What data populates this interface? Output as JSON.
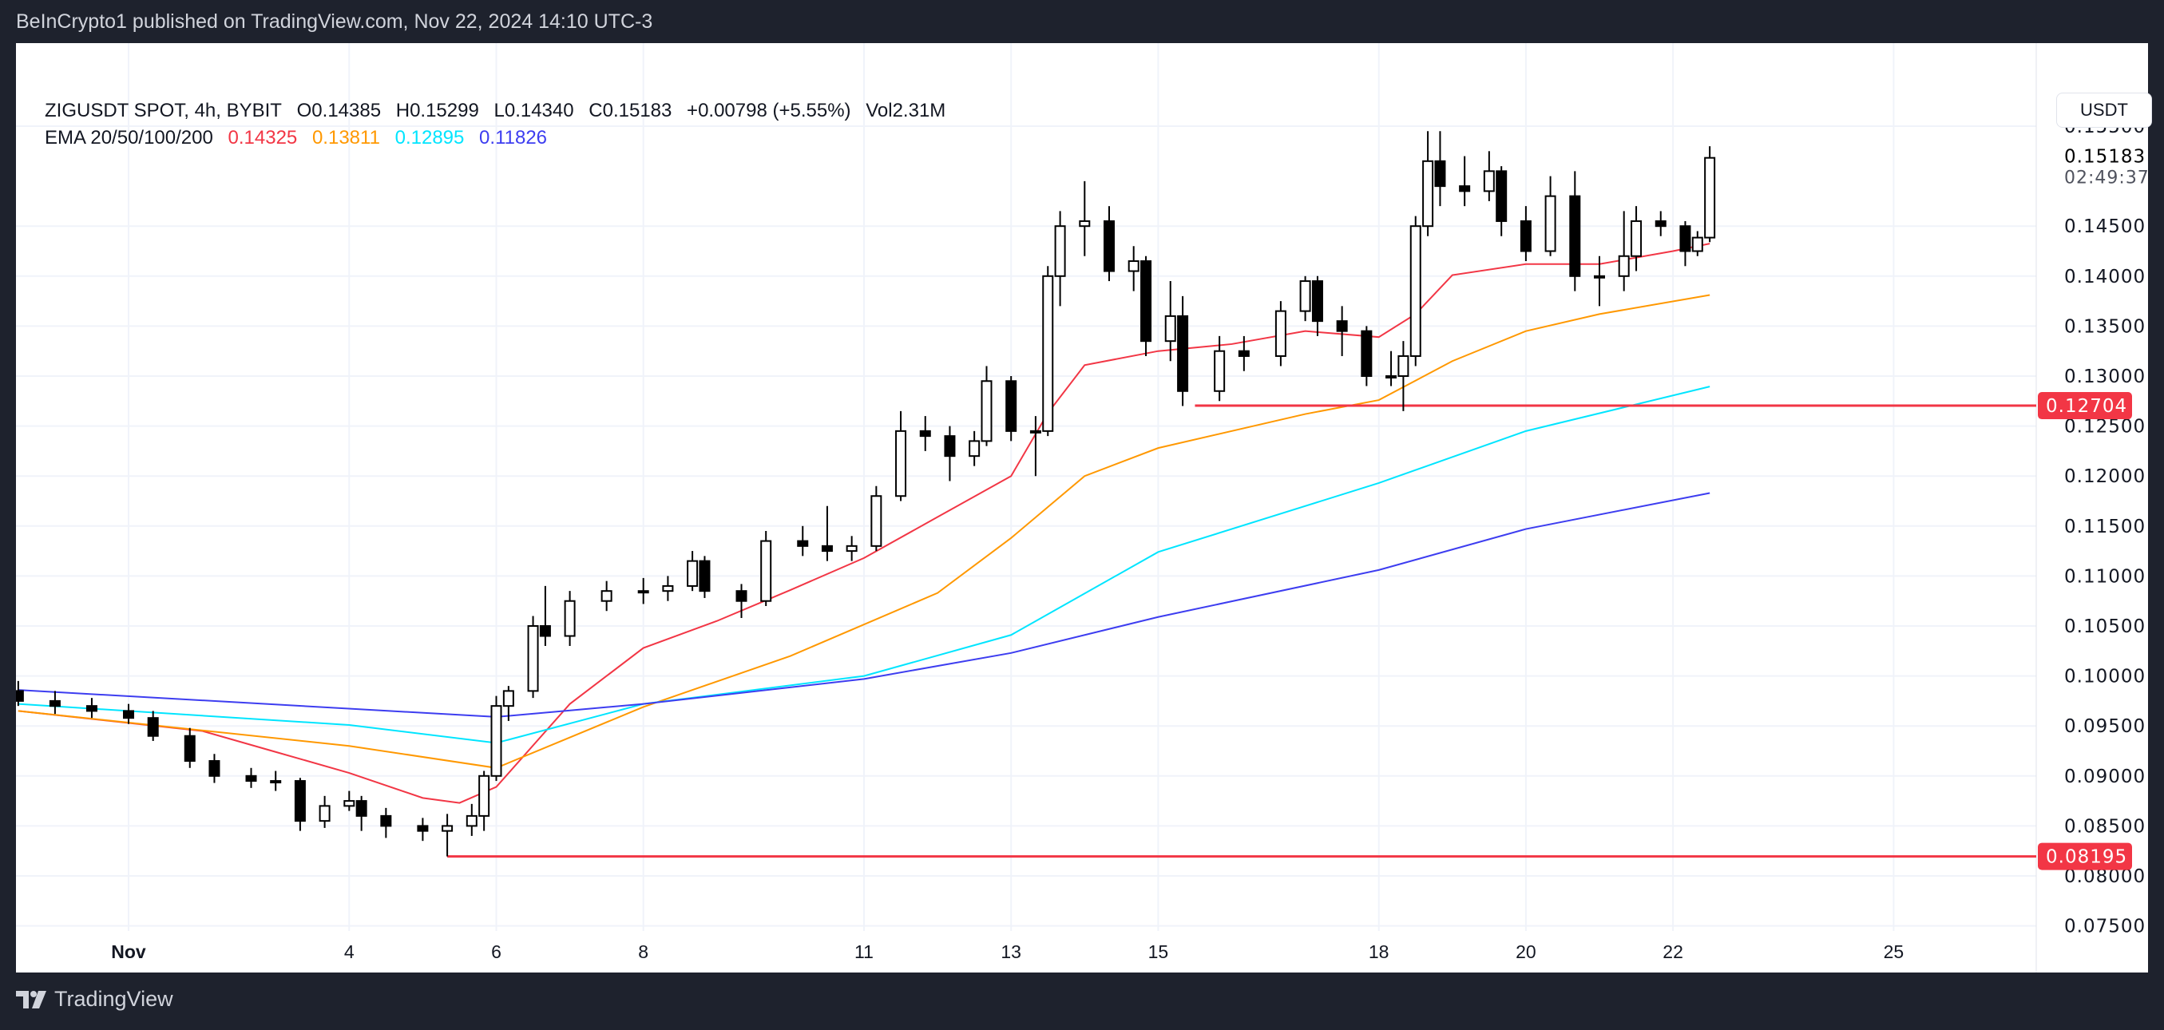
{
  "header": {
    "publisher": "BeInCrypto1 published on TradingView.com, Nov 22, 2024 14:10 UTC-3"
  },
  "legend": {
    "symbol": "ZIGUSDT SPOT, 4h, BYBIT",
    "open": "O0.14385",
    "high": "H0.15299",
    "low": "L0.14340",
    "close": "C0.15183",
    "change": "+0.00798 (+5.55%)",
    "volume": "Vol2.31M",
    "ema_label": "EMA 20/50/100/200",
    "ema_values": [
      "0.14325",
      "0.13811",
      "0.12895",
      "0.11826"
    ]
  },
  "axis": {
    "currency_button": "USDT",
    "current_price": "0.15183",
    "countdown": "02:49:37"
  },
  "footer": {
    "brand": "TradingView"
  },
  "colors": {
    "up": "#ffffff",
    "down": "#000000",
    "ema20": "#f23645",
    "ema50": "#ff9800",
    "ema100": "#00e5ff",
    "ema200": "#3d3df0",
    "level": "#f23645",
    "background": "#ffffff",
    "frame": "#1e222d"
  },
  "chart_data": {
    "type": "candlestick",
    "ylim": [
      0.075,
      0.1575
    ],
    "y_ticks": [
      "0.15500",
      "0.14500",
      "0.14000",
      "0.13500",
      "0.13000",
      "0.12500",
      "0.12000",
      "0.11500",
      "0.11000",
      "0.10500",
      "0.10000",
      "0.09500",
      "0.09000",
      "0.08500",
      "0.08000",
      "0.07500"
    ],
    "x_ticks": [
      {
        "label": "Nov",
        "date": "2024-11-01",
        "bold": true
      },
      {
        "label": "4",
        "date": "2024-11-04"
      },
      {
        "label": "6",
        "date": "2024-11-06"
      },
      {
        "label": "8",
        "date": "2024-11-08"
      },
      {
        "label": "11",
        "date": "2024-11-11"
      },
      {
        "label": "13",
        "date": "2024-11-13"
      },
      {
        "label": "15",
        "date": "2024-11-15"
      },
      {
        "label": "18",
        "date": "2024-11-18"
      },
      {
        "label": "20",
        "date": "2024-11-20"
      },
      {
        "label": "22",
        "date": "2024-11-22"
      },
      {
        "label": "25",
        "date": "2024-11-25"
      }
    ],
    "grid": true,
    "candles": [
      [
        "2024-10-30T12",
        0.0985,
        0.0995,
        0.097,
        0.0975
      ],
      [
        "2024-10-31T00",
        0.0975,
        0.0985,
        0.0962,
        0.097
      ],
      [
        "2024-10-31T12",
        0.097,
        0.0978,
        0.0958,
        0.0965
      ],
      [
        "2024-11-01T00",
        0.0965,
        0.0972,
        0.0952,
        0.0958
      ],
      [
        "2024-11-01T08",
        0.0958,
        0.0965,
        0.0935,
        0.094
      ],
      [
        "2024-11-01T20",
        0.094,
        0.0948,
        0.0908,
        0.0915
      ],
      [
        "2024-11-02T04",
        0.0915,
        0.0922,
        0.0893,
        0.09
      ],
      [
        "2024-11-02T16",
        0.09,
        0.0908,
        0.0888,
        0.0895
      ],
      [
        "2024-11-03T00",
        0.0895,
        0.0905,
        0.0885,
        0.0895
      ],
      [
        "2024-11-03T08",
        0.0895,
        0.0898,
        0.0845,
        0.0855
      ],
      [
        "2024-11-03T16",
        0.0855,
        0.088,
        0.0848,
        0.087
      ],
      [
        "2024-11-04T00",
        0.087,
        0.0885,
        0.0865,
        0.0875
      ],
      [
        "2024-11-04T04",
        0.0875,
        0.088,
        0.0845,
        0.086
      ],
      [
        "2024-11-04T12",
        0.086,
        0.0868,
        0.0838,
        0.085
      ],
      [
        "2024-11-05T00",
        0.085,
        0.0858,
        0.0835,
        0.0845
      ],
      [
        "2024-11-05T08",
        0.0845,
        0.0862,
        0.08195,
        0.085
      ],
      [
        "2024-11-05T16",
        0.085,
        0.0872,
        0.084,
        0.086
      ],
      [
        "2024-11-05T20",
        0.086,
        0.0905,
        0.0845,
        0.09
      ],
      [
        "2024-11-06T00",
        0.09,
        0.098,
        0.0895,
        0.097
      ],
      [
        "2024-11-06T04",
        0.097,
        0.099,
        0.0955,
        0.0985
      ],
      [
        "2024-11-06T12",
        0.0985,
        0.106,
        0.0978,
        0.105
      ],
      [
        "2024-11-06T16",
        0.105,
        0.109,
        0.103,
        0.104
      ],
      [
        "2024-11-07T00",
        0.104,
        0.1085,
        0.103,
        0.1075
      ],
      [
        "2024-11-07T12",
        0.1075,
        0.1095,
        0.1065,
        0.1085
      ],
      [
        "2024-11-08T00",
        0.1085,
        0.1098,
        0.1072,
        0.1085
      ],
      [
        "2024-11-08T08",
        0.1085,
        0.11,
        0.1075,
        0.109
      ],
      [
        "2024-11-08T16",
        0.109,
        0.1125,
        0.1085,
        0.1115
      ],
      [
        "2024-11-08T20",
        0.1115,
        0.112,
        0.1078,
        0.1085
      ],
      [
        "2024-11-09T08",
        0.1085,
        0.1092,
        0.1058,
        0.1075
      ],
      [
        "2024-11-09T16",
        0.1075,
        0.1145,
        0.107,
        0.1135
      ],
      [
        "2024-11-10T04",
        0.1135,
        0.115,
        0.112,
        0.113
      ],
      [
        "2024-11-10T12",
        0.113,
        0.117,
        0.1115,
        0.1125
      ],
      [
        "2024-11-10T20",
        0.1125,
        0.114,
        0.1115,
        0.113
      ],
      [
        "2024-11-11T04",
        0.113,
        0.119,
        0.1125,
        0.118
      ],
      [
        "2024-11-11T12",
        0.118,
        0.1265,
        0.1175,
        0.1245
      ],
      [
        "2024-11-11T20",
        0.1245,
        0.126,
        0.1225,
        0.124
      ],
      [
        "2024-11-12T04",
        0.124,
        0.125,
        0.1195,
        0.122
      ],
      [
        "2024-11-12T12",
        0.122,
        0.1245,
        0.121,
        0.1235
      ],
      [
        "2024-11-12T16",
        0.1235,
        0.131,
        0.123,
        0.1295
      ],
      [
        "2024-11-13T00",
        0.1295,
        0.13,
        0.1235,
        0.1245
      ],
      [
        "2024-11-13T08",
        0.1245,
        0.126,
        0.12,
        0.1245
      ],
      [
        "2024-11-13T12",
        0.1245,
        0.141,
        0.124,
        0.14
      ],
      [
        "2024-11-13T16",
        0.14,
        0.1465,
        0.137,
        0.145
      ],
      [
        "2024-11-14T00",
        0.145,
        0.1495,
        0.142,
        0.1455
      ],
      [
        "2024-11-14T08",
        0.1455,
        0.147,
        0.1395,
        0.1405
      ],
      [
        "2024-11-14T16",
        0.1405,
        0.143,
        0.1385,
        0.1415
      ],
      [
        "2024-11-14T20",
        0.1415,
        0.142,
        0.132,
        0.1335
      ],
      [
        "2024-11-15T04",
        0.1335,
        0.1395,
        0.1315,
        0.136
      ],
      [
        "2024-11-15T08",
        0.136,
        0.138,
        0.127,
        0.1285
      ],
      [
        "2024-11-15T20",
        0.1285,
        0.134,
        0.1275,
        0.1325
      ],
      [
        "2024-11-16T04",
        0.1325,
        0.134,
        0.1305,
        0.132
      ],
      [
        "2024-11-16T16",
        0.132,
        0.1375,
        0.131,
        0.1365
      ],
      [
        "2024-11-17T00",
        0.1365,
        0.14,
        0.1355,
        0.1395
      ],
      [
        "2024-11-17T04",
        0.1395,
        0.14,
        0.134,
        0.1355
      ],
      [
        "2024-11-17T12",
        0.1355,
        0.137,
        0.132,
        0.1345
      ],
      [
        "2024-11-17T20",
        0.1345,
        0.135,
        0.129,
        0.13
      ],
      [
        "2024-11-18T04",
        0.13,
        0.1325,
        0.129,
        0.13
      ],
      [
        "2024-11-18T08",
        0.13,
        0.1335,
        0.1265,
        0.132
      ],
      [
        "2024-11-18T12",
        0.132,
        0.146,
        0.131,
        0.145
      ],
      [
        "2024-11-18T16",
        0.145,
        0.1545,
        0.144,
        0.1515
      ],
      [
        "2024-11-18T20",
        0.1515,
        0.1545,
        0.147,
        0.149
      ],
      [
        "2024-11-19T04",
        0.149,
        0.152,
        0.147,
        0.1485
      ],
      [
        "2024-11-19T12",
        0.1485,
        0.1525,
        0.1475,
        0.1505
      ],
      [
        "2024-11-19T16",
        0.1505,
        0.151,
        0.144,
        0.1455
      ],
      [
        "2024-11-20T00",
        0.1455,
        0.147,
        0.1415,
        0.1425
      ],
      [
        "2024-11-20T08",
        0.1425,
        0.15,
        0.142,
        0.148
      ],
      [
        "2024-11-20T16",
        0.148,
        0.1505,
        0.1385,
        0.14
      ],
      [
        "2024-11-21T00",
        0.14,
        0.142,
        0.137,
        0.14
      ],
      [
        "2024-11-21T08",
        0.14,
        0.1465,
        0.1385,
        0.142
      ],
      [
        "2024-11-21T12",
        0.142,
        0.147,
        0.1405,
        0.1455
      ],
      [
        "2024-11-21T20",
        0.1455,
        0.1465,
        0.144,
        0.145
      ],
      [
        "2024-11-22T04",
        0.145,
        0.1455,
        0.141,
        0.1425
      ],
      [
        "2024-11-22T08",
        0.1425,
        0.1445,
        0.142,
        0.14385
      ],
      [
        "2024-11-22T12",
        0.14385,
        0.15299,
        0.1434,
        0.15183
      ]
    ],
    "ema": [
      {
        "name": "EMA 20",
        "color": "#f23645",
        "points": [
          [
            "2024-10-30T12",
            0.0965
          ],
          [
            "2024-11-02T00",
            0.0945
          ],
          [
            "2024-11-03T00",
            0.0924
          ],
          [
            "2024-11-04T00",
            0.0903
          ],
          [
            "2024-11-05T00",
            0.0878
          ],
          [
            "2024-11-05T12",
            0.0873
          ],
          [
            "2024-11-06T00",
            0.0889
          ],
          [
            "2024-11-07T00",
            0.0972
          ],
          [
            "2024-11-08T00",
            0.1028
          ],
          [
            "2024-11-09T00",
            0.1055
          ],
          [
            "2024-11-10T00",
            0.1086
          ],
          [
            "2024-11-11T00",
            0.1118
          ],
          [
            "2024-11-12T00",
            0.1159
          ],
          [
            "2024-11-13T00",
            0.12
          ],
          [
            "2024-11-13T12",
            0.1263
          ],
          [
            "2024-11-14T00",
            0.1311
          ],
          [
            "2024-11-15T00",
            0.1325
          ],
          [
            "2024-11-16T00",
            0.1332
          ],
          [
            "2024-11-17T00",
            0.1345
          ],
          [
            "2024-11-18T00",
            0.1339
          ],
          [
            "2024-11-18T12",
            0.1362
          ],
          [
            "2024-11-19T00",
            0.1401
          ],
          [
            "2024-11-20T00",
            0.1412
          ],
          [
            "2024-11-21T00",
            0.1412
          ],
          [
            "2024-11-22T00",
            0.1425
          ],
          [
            "2024-11-22T12",
            0.14325
          ]
        ]
      },
      {
        "name": "EMA 50",
        "color": "#ff9800",
        "points": [
          [
            "2024-10-30T12",
            0.0965
          ],
          [
            "2024-11-04T00",
            0.093
          ],
          [
            "2024-11-06T00",
            0.0908
          ],
          [
            "2024-11-08T00",
            0.0969
          ],
          [
            "2024-11-10T00",
            0.102
          ],
          [
            "2024-11-12T00",
            0.1083
          ],
          [
            "2024-11-13T00",
            0.1138
          ],
          [
            "2024-11-14T00",
            0.12
          ],
          [
            "2024-11-15T00",
            0.1228
          ],
          [
            "2024-11-17T00",
            0.1262
          ],
          [
            "2024-11-18T00",
            0.1276
          ],
          [
            "2024-11-19T00",
            0.1315
          ],
          [
            "2024-11-20T00",
            0.1345
          ],
          [
            "2024-11-21T00",
            0.1362
          ],
          [
            "2024-11-22T12",
            0.13811
          ]
        ]
      },
      {
        "name": "EMA 100",
        "color": "#00e5ff",
        "points": [
          [
            "2024-10-30T12",
            0.0972
          ],
          [
            "2024-11-04T00",
            0.0951
          ],
          [
            "2024-11-06T00",
            0.0933
          ],
          [
            "2024-11-08T00",
            0.0972
          ],
          [
            "2024-11-11T00",
            0.1
          ],
          [
            "2024-11-13T00",
            0.1041
          ],
          [
            "2024-11-15T00",
            0.1124
          ],
          [
            "2024-11-18T00",
            0.1193
          ],
          [
            "2024-11-20T00",
            0.1245
          ],
          [
            "2024-11-22T12",
            0.12895
          ]
        ]
      },
      {
        "name": "EMA 200",
        "color": "#3d3df0",
        "points": [
          [
            "2024-10-30T12",
            0.0986
          ],
          [
            "2024-11-06T00",
            0.0959
          ],
          [
            "2024-11-08T00",
            0.0972
          ],
          [
            "2024-11-11T00",
            0.0997
          ],
          [
            "2024-11-13T00",
            0.1023
          ],
          [
            "2024-11-15T00",
            0.1059
          ],
          [
            "2024-11-18T00",
            0.1106
          ],
          [
            "2024-11-20T00",
            0.1147
          ],
          [
            "2024-11-22T12",
            0.1183
          ]
        ]
      }
    ],
    "levels": [
      {
        "value": 0.12704,
        "label": "0.12704",
        "from": "2024-11-15T12"
      },
      {
        "value": 0.08195,
        "label": "0.08195",
        "from": "2024-11-05T08"
      }
    ]
  }
}
